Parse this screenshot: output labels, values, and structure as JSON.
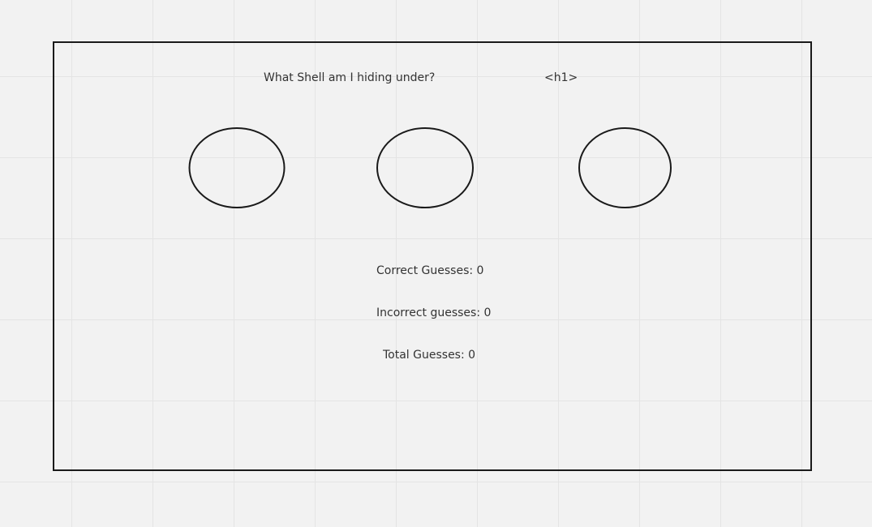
{
  "heading": {
    "question": "What Shell am I hiding under?",
    "tag_annotation": "<h1>"
  },
  "shells": [
    {
      "id": "shell-1"
    },
    {
      "id": "shell-2"
    },
    {
      "id": "shell-3"
    }
  ],
  "score": {
    "correct": "Correct Guesses: 0",
    "incorrect": "Incorrect guesses: 0",
    "total": "Total Guesses: 0"
  },
  "colors": {
    "background": "#f2f2f2",
    "grid": "#e4e4e4",
    "stroke": "#1a1a1a",
    "text": "#333333"
  }
}
